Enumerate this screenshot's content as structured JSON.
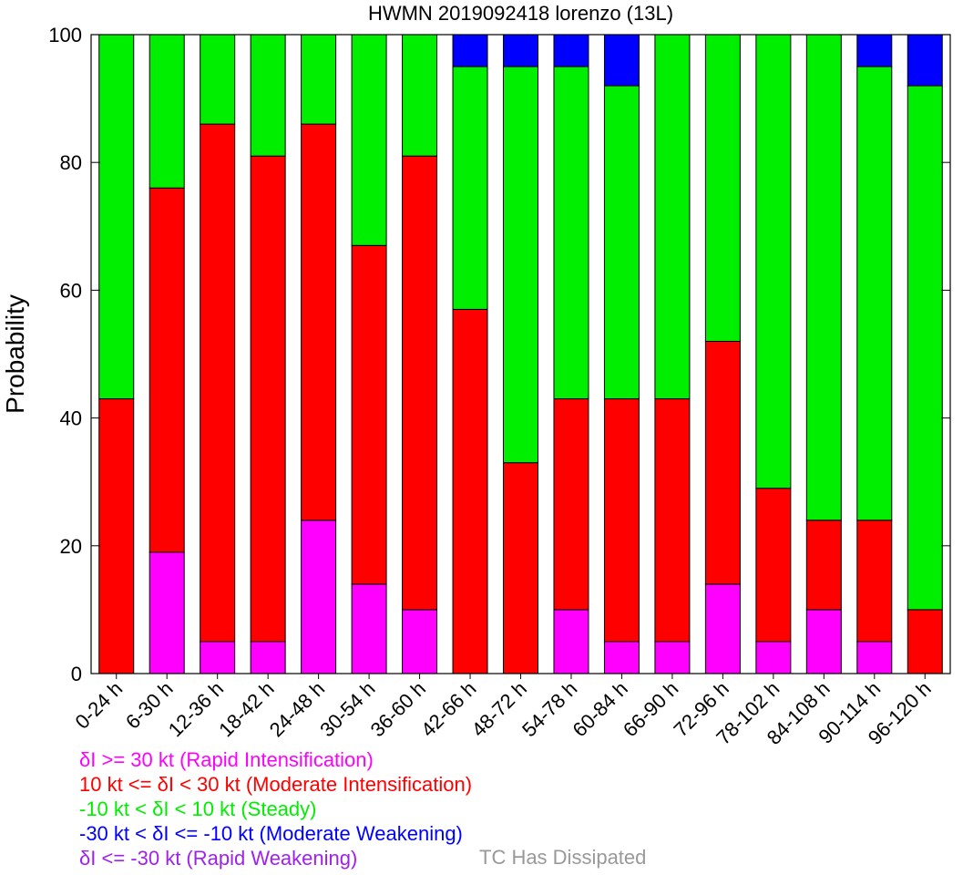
{
  "chart_data": {
    "type": "bar",
    "stacked": true,
    "title": "HWMN 2019092418 lorenzo (13L)",
    "xlabel": "",
    "ylabel": "Probability",
    "ylim": [
      0,
      100
    ],
    "yticks": [
      0,
      20,
      40,
      60,
      80,
      100
    ],
    "grid": false,
    "categories": [
      "0-24 h",
      "6-30 h",
      "12-36 h",
      "18-42 h",
      "24-48 h",
      "30-54 h",
      "36-60 h",
      "42-66 h",
      "48-72 h",
      "54-78 h",
      "60-84 h",
      "66-90 h",
      "72-96 h",
      "78-102 h",
      "84-108 h",
      "90-114 h",
      "96-120 h"
    ],
    "series": [
      {
        "color": "#ff00ff",
        "values": [
          0,
          19,
          5,
          5,
          24,
          14,
          10,
          0,
          0,
          10,
          5,
          5,
          14,
          5,
          10,
          5,
          0
        ]
      },
      {
        "color": "#ff0000",
        "values": [
          43,
          57,
          81,
          76,
          62,
          53,
          71,
          57,
          33,
          33,
          38,
          38,
          38,
          24,
          14,
          19,
          10
        ]
      },
      {
        "color": "#00ee00",
        "values": [
          57,
          24,
          14,
          19,
          14,
          33,
          19,
          38,
          62,
          52,
          49,
          57,
          48,
          71,
          76,
          71,
          82
        ]
      },
      {
        "color": "#0000ff",
        "values": [
          0,
          0,
          0,
          0,
          0,
          0,
          0,
          5,
          5,
          5,
          8,
          0,
          0,
          0,
          0,
          5,
          8
        ]
      },
      {
        "color": "#a020f0",
        "values": [
          0,
          0,
          0,
          0,
          0,
          0,
          0,
          0,
          0,
          0,
          0,
          0,
          0,
          0,
          0,
          0,
          0
        ]
      }
    ]
  },
  "legend": [
    {
      "text": "δI >= 30 kt (Rapid Intensification)",
      "color": "#ff00ff"
    },
    {
      "text": "10 kt <= δI < 30 kt (Moderate Intensification)",
      "color": "#ff0000"
    },
    {
      "text": "-10 kt < δI < 10 kt (Steady)",
      "color": "#00ee00"
    },
    {
      "text": "-30 kt < δI <= -10 kt (Moderate Weakening)",
      "color": "#0000ff"
    },
    {
      "text": "δI <= -30 kt (Rapid Weakening)",
      "color": "#a020f0"
    }
  ],
  "dissipated": {
    "text": "TC Has Dissipated",
    "color": "#999999"
  }
}
